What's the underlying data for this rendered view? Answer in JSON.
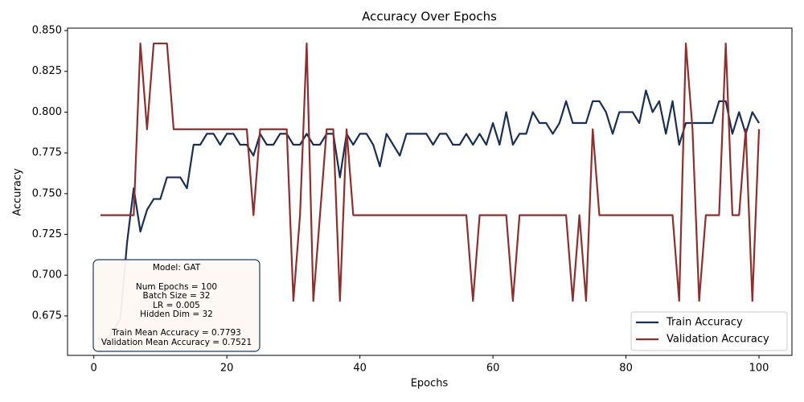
{
  "chart_data": {
    "type": "line",
    "title": "Accuracy Over Epochs",
    "x_label": "Epochs",
    "y_label": "Accuracy",
    "x": [
      1,
      2,
      3,
      4,
      5,
      6,
      7,
      8,
      9,
      10,
      11,
      12,
      13,
      14,
      15,
      16,
      17,
      18,
      19,
      20,
      21,
      22,
      23,
      24,
      25,
      26,
      27,
      28,
      29,
      30,
      31,
      32,
      33,
      34,
      35,
      36,
      37,
      38,
      39,
      40,
      41,
      42,
      43,
      44,
      45,
      46,
      47,
      48,
      49,
      50,
      51,
      52,
      53,
      54,
      55,
      56,
      57,
      58,
      59,
      60,
      61,
      62,
      63,
      64,
      65,
      66,
      67,
      68,
      69,
      70,
      71,
      72,
      73,
      74,
      75,
      76,
      77,
      78,
      79,
      80,
      81,
      82,
      83,
      84,
      85,
      86,
      87,
      88,
      89,
      90,
      91,
      92,
      93,
      94,
      95,
      96,
      97,
      98,
      99,
      100
    ],
    "series": [
      {
        "name": "Train Accuracy",
        "color": "#1a2e52",
        "values": [
          0.66,
          0.66,
          0.6667,
          0.6733,
          0.72,
          0.7533,
          0.7267,
          0.74,
          0.7467,
          0.7467,
          0.76,
          0.76,
          0.76,
          0.7533,
          0.78,
          0.78,
          0.7867,
          0.7867,
          0.78,
          0.7867,
          0.7867,
          0.78,
          0.78,
          0.7733,
          0.7867,
          0.78,
          0.78,
          0.7867,
          0.7867,
          0.78,
          0.78,
          0.7867,
          0.78,
          0.78,
          0.7867,
          0.7867,
          0.76,
          0.7867,
          0.78,
          0.7867,
          0.7867,
          0.78,
          0.7667,
          0.7867,
          0.78,
          0.7733,
          0.7867,
          0.7867,
          0.7867,
          0.7867,
          0.78,
          0.7867,
          0.7867,
          0.78,
          0.78,
          0.7867,
          0.78,
          0.7867,
          0.78,
          0.7933,
          0.78,
          0.8,
          0.78,
          0.7867,
          0.7867,
          0.8,
          0.7933,
          0.7933,
          0.7867,
          0.7933,
          0.8067,
          0.7933,
          0.7933,
          0.7933,
          0.8067,
          0.8067,
          0.8,
          0.7867,
          0.8,
          0.8,
          0.8,
          0.7933,
          0.8133,
          0.8,
          0.8067,
          0.7867,
          0.8067,
          0.78,
          0.7933,
          0.7933,
          0.7933,
          0.7933,
          0.7933,
          0.8067,
          0.8067,
          0.7867,
          0.8,
          0.7867,
          0.8,
          0.7933
        ]
      },
      {
        "name": "Validation Accuracy",
        "color": "#8b3030",
        "values": [
          0.7368,
          0.7368,
          0.7368,
          0.7368,
          0.7368,
          0.7368,
          0.8421,
          0.7895,
          0.8421,
          0.8421,
          0.8421,
          0.7895,
          0.7895,
          0.7895,
          0.7895,
          0.7895,
          0.7895,
          0.7895,
          0.7895,
          0.7895,
          0.7895,
          0.7895,
          0.7895,
          0.7368,
          0.7895,
          0.7895,
          0.7895,
          0.7895,
          0.7895,
          0.6842,
          0.7368,
          0.8421,
          0.6842,
          0.7368,
          0.7895,
          0.7895,
          0.6842,
          0.7895,
          0.7368,
          0.7368,
          0.7368,
          0.7368,
          0.7368,
          0.7368,
          0.7368,
          0.7368,
          0.7368,
          0.7368,
          0.7368,
          0.7368,
          0.7368,
          0.7368,
          0.7368,
          0.7368,
          0.7368,
          0.7368,
          0.6842,
          0.7368,
          0.7368,
          0.7368,
          0.7368,
          0.7368,
          0.6842,
          0.7368,
          0.7368,
          0.7368,
          0.7368,
          0.7368,
          0.7368,
          0.7368,
          0.7368,
          0.6842,
          0.7368,
          0.6842,
          0.7895,
          0.7368,
          0.7368,
          0.7368,
          0.7368,
          0.7368,
          0.7368,
          0.7368,
          0.7368,
          0.7368,
          0.7368,
          0.7368,
          0.7368,
          0.6842,
          0.8421,
          0.7895,
          0.6842,
          0.7368,
          0.7368,
          0.7368,
          0.8421,
          0.7368,
          0.7368,
          0.7895,
          0.6842,
          0.7895
        ]
      }
    ],
    "xlim": [
      -3.95,
      104.95
    ],
    "xticks": [
      0,
      20,
      40,
      60,
      80,
      100
    ],
    "ylim": [
      0.6508,
      0.8515
    ],
    "yticks": [
      0.675,
      {
        "value": 0.7,
        "label": "0.700"
      },
      0.725,
      {
        "value": 0.75,
        "label": "0.750"
      },
      0.775,
      {
        "value": 0.8,
        "label": "0.800"
      },
      0.825,
      {
        "value": 0.85,
        "label": "0.850"
      }
    ],
    "legend": "lower right",
    "annotation": [
      "Model: GAT",
      "Num Epochs = 100",
      "Batch Size = 32",
      "LR = 0.005",
      "Hidden Dim = 32",
      "Train Mean Accuracy = 0.7793",
      "Validation Mean Accuracy = 0.7521"
    ]
  }
}
